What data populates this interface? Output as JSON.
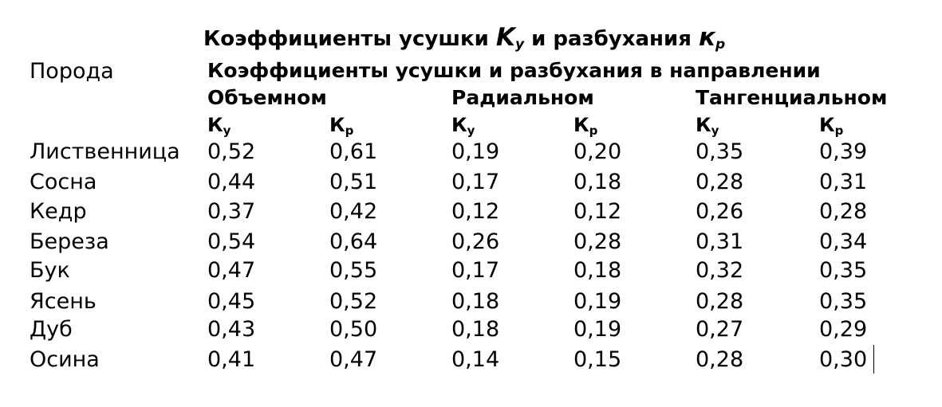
{
  "title": {
    "prefix": "Коэффициенты усушки ",
    "k1": "K",
    "k1_sub": "y",
    "middle": " и разбухания ",
    "k2": "к",
    "k2_sub": "p"
  },
  "header": {
    "species_label": "Порода",
    "group_label": "Коэффициенты усушки и разбухания в направлении",
    "directions": [
      "Объемном",
      "Радиальном",
      "Тангенциальном"
    ],
    "symbols": [
      {
        "base": "К",
        "sub": "у"
      },
      {
        "base": "К",
        "sub": "р"
      },
      {
        "base": "К",
        "sub": "у"
      },
      {
        "base": "К",
        "sub": "р"
      },
      {
        "base": "К",
        "sub": "у"
      },
      {
        "base": "К",
        "sub": "р"
      }
    ]
  },
  "rows": [
    {
      "species": "Лиственница",
      "values": [
        "0,52",
        "0,61",
        "0,19",
        "0,20",
        "0,35",
        "0,39"
      ]
    },
    {
      "species": "Сосна",
      "values": [
        "0,44",
        "0,51",
        "0,17",
        "0,18",
        "0,28",
        "0,31"
      ]
    },
    {
      "species": "Кедр",
      "values": [
        "0,37",
        "0,42",
        "0,12",
        "0,12",
        "0,26",
        "0,28"
      ]
    },
    {
      "species": "Береза",
      "values": [
        "0,54",
        "0,64",
        "0,26",
        "0,28",
        "0,31",
        "0,34"
      ]
    },
    {
      "species": "Бук",
      "values": [
        "0,47",
        "0,55",
        "0,17",
        "0,18",
        "0,32",
        "0,35"
      ]
    },
    {
      "species": "Ясень",
      "values": [
        "0,45",
        "0,52",
        "0,18",
        "0,19",
        "0,28",
        "0,35"
      ]
    },
    {
      "species": "Дуб",
      "values": [
        "0,43",
        "0,50",
        "0,18",
        "0,19",
        "0,27",
        "0,29"
      ]
    },
    {
      "species": "Осина",
      "values": [
        "0,41",
        "0,47",
        "0,14",
        "0,15",
        "0,28",
        "0,30"
      ]
    }
  ]
}
